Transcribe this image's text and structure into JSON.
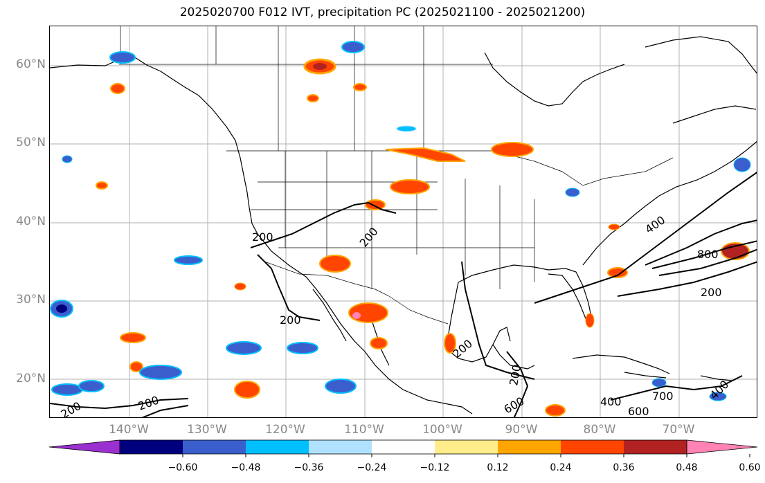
{
  "title": "2025020700 F012 IVT, precipitation PC (2025021100 - 2025021200)",
  "lat_labels": [
    "60°N",
    "50°N",
    "40°N",
    "30°N",
    "20°N"
  ],
  "lon_labels": [
    "140°W",
    "130°W",
    "120°W",
    "110°W",
    "100°W",
    "90°W",
    "80°W",
    "70°W"
  ],
  "contour_labels": [
    "200",
    "200",
    "200",
    "200",
    "200",
    "200",
    "200",
    "200",
    "400",
    "400",
    "400",
    "600",
    "600",
    "700",
    "800"
  ],
  "colorbar": {
    "tick_labels": [
      "−0.60",
      "−0.48",
      "−0.36",
      "−0.24",
      "−0.12",
      "0.12",
      "0.24",
      "0.36",
      "0.48",
      "0.60"
    ],
    "colors": [
      "#9b30d0",
      "#00007f",
      "#3a5fcd",
      "#00bfff",
      "#b0e2ff",
      "#ffffff",
      "#ffec8b",
      "#ffa500",
      "#ff4500",
      "#b22222",
      "#ff83b4"
    ]
  },
  "colors": {
    "neg_strong": "#00007f",
    "neg_mid": "#3a5fcd",
    "neg_light": "#00bfff",
    "neg_pale": "#b0e2ff",
    "pos_pale": "#ffec8b",
    "pos_light": "#ffa500",
    "pos_mid": "#ff4500",
    "pos_strong": "#b22222",
    "pos_max": "#ff83b4"
  }
}
